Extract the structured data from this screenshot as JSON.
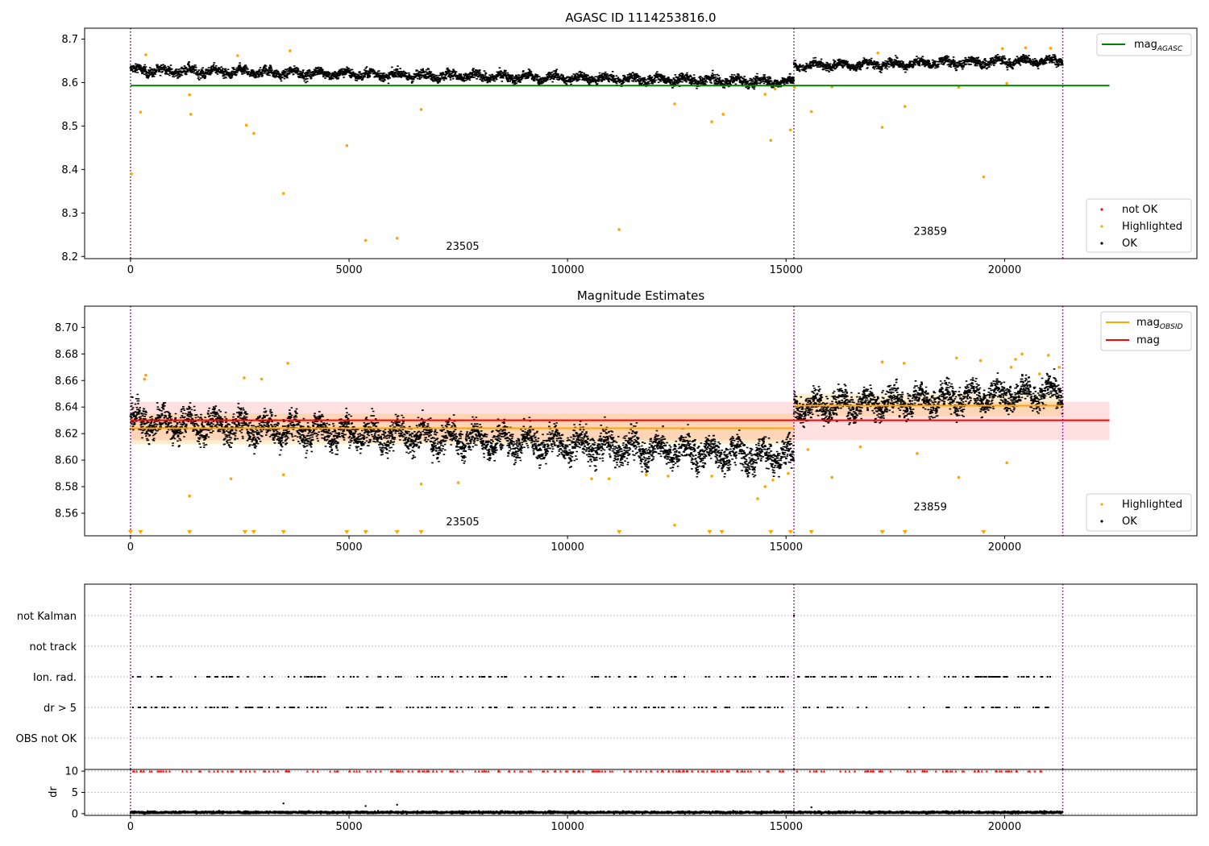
{
  "chart_data": [
    {
      "type": "scatter",
      "title": "AGASC ID 1114253816.0",
      "xlim": [
        -1050,
        24400
      ],
      "ylim": [
        8.195,
        8.725
      ],
      "yticks": [
        8.2,
        8.3,
        8.4,
        8.5,
        8.6,
        8.7
      ],
      "xticks": [
        0,
        5000,
        10000,
        15000,
        20000
      ],
      "vlines": [
        0,
        15180,
        21330
      ],
      "obsid_labels": [
        {
          "text": "23505",
          "x": 7600,
          "y": 8.215
        },
        {
          "text": "23859",
          "x": 18300,
          "y": 8.25
        }
      ],
      "lines": [
        {
          "name": "AGASC",
          "value": 8.593,
          "x": [
            0,
            22400
          ],
          "color": "#008000"
        }
      ],
      "segments": [
        {
          "x": [
            0,
            15180
          ],
          "trend": [
            8.63,
            8.603
          ],
          "spread": 0.013
        },
        {
          "x": [
            15180,
            21330
          ],
          "trend": [
            8.64,
            8.652
          ],
          "spread": 0.012
        }
      ],
      "highlighted": [
        [
          20,
          8.39
        ],
        [
          230,
          8.532
        ],
        [
          1350,
          8.572
        ],
        [
          1380,
          8.527
        ],
        [
          2650,
          8.502
        ],
        [
          2820,
          8.483
        ],
        [
          3500,
          8.345
        ],
        [
          4950,
          8.455
        ],
        [
          5380,
          8.237
        ],
        [
          6100,
          8.242
        ],
        [
          6650,
          8.538
        ],
        [
          11180,
          8.262
        ],
        [
          12450,
          8.551
        ],
        [
          13300,
          8.51
        ],
        [
          13560,
          8.527
        ],
        [
          14520,
          8.573
        ],
        [
          14650,
          8.467
        ],
        [
          15100,
          8.491
        ],
        [
          15580,
          8.533
        ],
        [
          17200,
          8.497
        ],
        [
          17720,
          8.545
        ],
        [
          19520,
          8.383
        ],
        [
          350,
          8.664
        ],
        [
          2450,
          8.662
        ],
        [
          3650,
          8.673
        ],
        [
          17100,
          8.668
        ],
        [
          19950,
          8.678
        ],
        [
          20480,
          8.68
        ],
        [
          21050,
          8.679
        ],
        [
          16050,
          8.59
        ],
        [
          18950,
          8.589
        ],
        [
          20050,
          8.598
        ],
        [
          14750,
          8.585
        ],
        [
          15190,
          8.589
        ]
      ],
      "legend": [
        {
          "label": "not OK",
          "color": "#ff0000"
        },
        {
          "label": "Highlighted",
          "color": "#ffa500"
        },
        {
          "label": "OK",
          "color": "#000000"
        }
      ],
      "legend_top": [
        {
          "label": "mag",
          "sub": "AGASC",
          "color": "#008000"
        }
      ]
    },
    {
      "type": "scatter",
      "title": "Magnitude Estimates",
      "xlim": [
        -1050,
        24400
      ],
      "ylim": [
        8.543,
        8.716
      ],
      "yticks": [
        8.56,
        8.58,
        8.6,
        8.62,
        8.64,
        8.66,
        8.68,
        8.7
      ],
      "xticks": [
        0,
        5000,
        10000,
        15000,
        20000
      ],
      "vlines": [
        0,
        15180,
        21330
      ],
      "obsid_labels": [
        {
          "text": "23505",
          "x": 7600,
          "y": 8.551
        },
        {
          "text": "23859",
          "x": 18300,
          "y": 8.562
        }
      ],
      "mag": {
        "value": 8.63,
        "band": [
          8.615,
          8.644
        ],
        "x": [
          0,
          22400
        ],
        "color": "#ff0000"
      },
      "obsid_mags": [
        {
          "x": [
            0,
            15180
          ],
          "value": 8.624,
          "band": [
            8.612,
            8.635
          ]
        },
        {
          "x": [
            15180,
            21330
          ],
          "value": 8.641,
          "band": [
            8.633,
            8.65
          ]
        }
      ],
      "segments": [
        {
          "x": [
            0,
            15180
          ],
          "trend": [
            8.63,
            8.603
          ],
          "spread": 0.013
        },
        {
          "x": [
            15180,
            21330
          ],
          "trend": [
            8.64,
            8.652
          ],
          "spread": 0.012
        }
      ],
      "highlighted": [
        [
          350,
          8.664
        ],
        [
          320,
          8.661
        ],
        [
          2600,
          8.662
        ],
        [
          3000,
          8.661
        ],
        [
          3600,
          8.673
        ],
        [
          1350,
          8.573
        ],
        [
          2300,
          8.586
        ],
        [
          3500,
          8.589
        ],
        [
          6650,
          8.582
        ],
        [
          7500,
          8.583
        ],
        [
          10550,
          8.586
        ],
        [
          10950,
          8.586
        ],
        [
          11800,
          8.589
        ],
        [
          12300,
          8.588
        ],
        [
          12450,
          8.551
        ],
        [
          13300,
          8.588
        ],
        [
          14350,
          8.571
        ],
        [
          14520,
          8.58
        ],
        [
          14700,
          8.585
        ],
        [
          15050,
          8.59
        ],
        [
          15500,
          8.608
        ],
        [
          16050,
          8.587
        ],
        [
          16700,
          8.61
        ],
        [
          17200,
          8.674
        ],
        [
          17700,
          8.673
        ],
        [
          18000,
          8.605
        ],
        [
          18950,
          8.587
        ],
        [
          18900,
          8.677
        ],
        [
          19450,
          8.675
        ],
        [
          20050,
          8.598
        ],
        [
          20250,
          8.676
        ],
        [
          20400,
          8.68
        ],
        [
          21000,
          8.679
        ],
        [
          20800,
          8.665
        ],
        [
          20150,
          8.67
        ],
        [
          21250,
          8.67
        ]
      ],
      "below_range_x": [
        0,
        230,
        1350,
        2620,
        2820,
        3500,
        4950,
        5380,
        6100,
        6650,
        11180,
        13250,
        13530,
        14650,
        15100,
        15580,
        17200,
        19520,
        17720
      ],
      "legend": [
        {
          "label": "Highlighted",
          "color": "#ffa500"
        },
        {
          "label": "OK",
          "color": "#000000"
        }
      ],
      "legend_top": [
        {
          "label": "mag",
          "sub": "OBSID",
          "color": "#ffa500"
        },
        {
          "label": "mag",
          "sub": "",
          "color": "#ff0000"
        }
      ]
    },
    {
      "type": "scatter",
      "title": "",
      "xlim": [
        -1050,
        24400
      ],
      "categories": [
        "not Kalman",
        "not track",
        "Ion. rad.",
        "dr > 5",
        "OBS not OK"
      ],
      "flag_counts": {
        "not Kalman": 1,
        "not track": 0,
        "Ion. rad.": 220,
        "dr > 5": 220,
        "OBS not OK": 0
      },
      "vlines": [
        0,
        15180,
        21330
      ]
    },
    {
      "type": "scatter",
      "title": "",
      "ylabel": "dr",
      "xlim": [
        -1050,
        24400
      ],
      "ylim": [
        -0.4,
        10.4
      ],
      "yticks": [
        0,
        5,
        10
      ],
      "xticks": [
        0,
        5000,
        10000,
        15000,
        20000
      ],
      "vlines": [
        0,
        15180,
        21330
      ],
      "clip_value": 10,
      "baseline": {
        "mean": 0.5,
        "spread": 0.35
      },
      "outliers": [
        [
          3500,
          2.4
        ],
        [
          5380,
          1.8
        ],
        [
          6100,
          2.1
        ],
        [
          15580,
          1.5
        ]
      ]
    }
  ]
}
